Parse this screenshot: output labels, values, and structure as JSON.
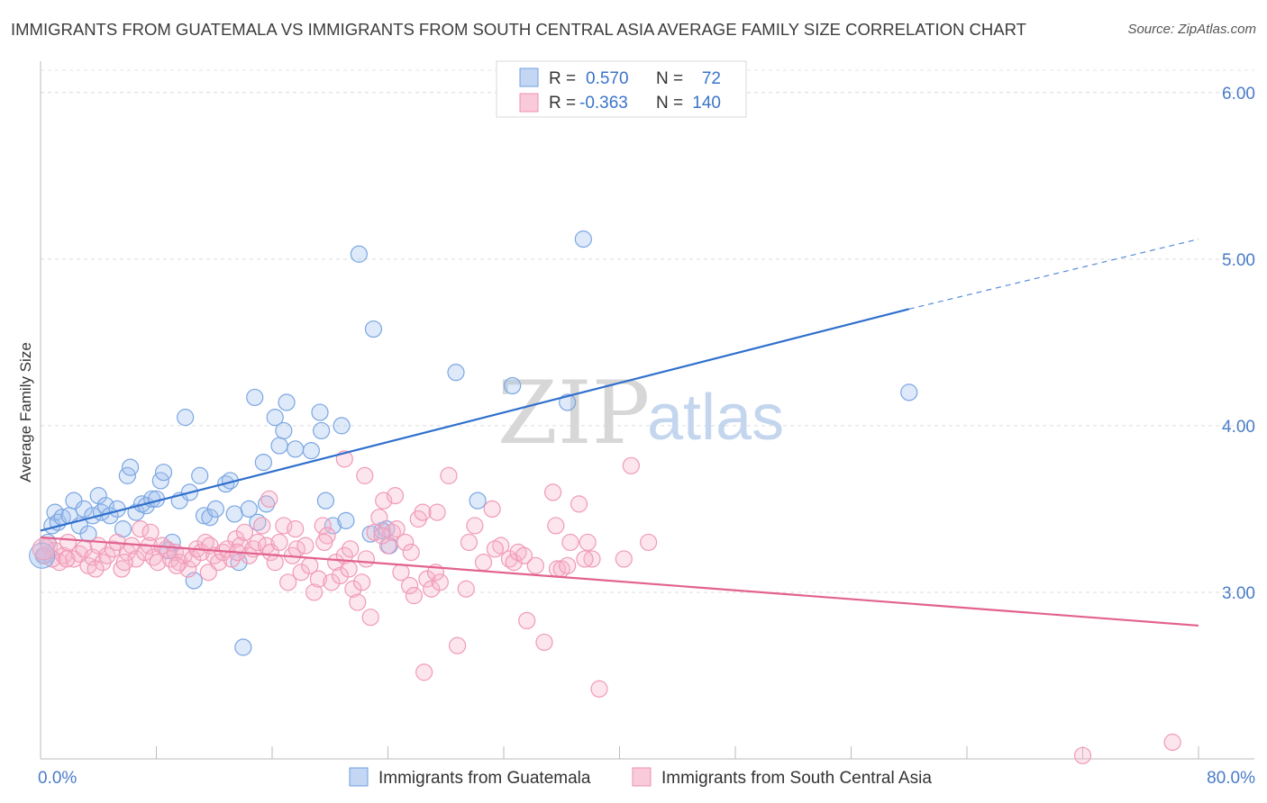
{
  "title": "IMMIGRANTS FROM GUATEMALA VS IMMIGRANTS FROM SOUTH CENTRAL ASIA AVERAGE FAMILY SIZE CORRELATION CHART",
  "source": "Source: ZipAtlas.com",
  "watermark": {
    "zip": "ZIP",
    "atlas": "atlas"
  },
  "legend": {
    "rows": [
      {
        "r_label": "R =",
        "r_value": "0.570",
        "n_label": "N =",
        "n_value": "72",
        "color": "#6f9fe0"
      },
      {
        "r_label": "R =",
        "r_value": "-0.363",
        "n_label": "N =",
        "n_value": "140",
        "color": "#ee8fae"
      }
    ]
  },
  "chart_data": {
    "type": "scatter",
    "title": "IMMIGRANTS FROM GUATEMALA VS IMMIGRANTS FROM SOUTH CENTRAL ASIA AVERAGE FAMILY SIZE CORRELATION CHART",
    "xlabel": "",
    "ylabel": "Average Family Size",
    "xlim": [
      0,
      80
    ],
    "ylim": [
      2.0,
      6.15
    ],
    "x_tick_labels": [
      "0.0%",
      "80.0%"
    ],
    "y_ticks": [
      3.0,
      4.0,
      5.0,
      6.0
    ],
    "y_tick_labels": [
      "3.00",
      "4.00",
      "5.00",
      "6.00"
    ],
    "grid": "horizontal dashed",
    "legend_position": "top-center",
    "series": [
      {
        "name": "Immigrants from Guatemala",
        "color": "#6f9fe0",
        "line_color": "#2f6fcc",
        "trend": {
          "x0": 0,
          "y0": 3.37,
          "x1": 60,
          "y1": 4.7,
          "dash_to_x": 80,
          "dash_to_y": 5.12
        },
        "points": [
          [
            0.3,
            3.22
          ],
          [
            0.5,
            3.3
          ],
          [
            0.8,
            3.4
          ],
          [
            1,
            3.48
          ],
          [
            1.2,
            3.42
          ],
          [
            1.5,
            3.45
          ],
          [
            2,
            3.46
          ],
          [
            2.3,
            3.55
          ],
          [
            2.7,
            3.4
          ],
          [
            3,
            3.5
          ],
          [
            3.3,
            3.35
          ],
          [
            3.6,
            3.46
          ],
          [
            4,
            3.58
          ],
          [
            4.2,
            3.48
          ],
          [
            4.5,
            3.52
          ],
          [
            4.8,
            3.46
          ],
          [
            5.3,
            3.5
          ],
          [
            5.7,
            3.38
          ],
          [
            6,
            3.7
          ],
          [
            6.2,
            3.75
          ],
          [
            6.6,
            3.48
          ],
          [
            7,
            3.53
          ],
          [
            7.3,
            3.52
          ],
          [
            7.7,
            3.56
          ],
          [
            8,
            3.56
          ],
          [
            8.3,
            3.67
          ],
          [
            8.5,
            3.72
          ],
          [
            8.8,
            3.25
          ],
          [
            9.1,
            3.3
          ],
          [
            9.6,
            3.55
          ],
          [
            10,
            4.05
          ],
          [
            10.3,
            3.6
          ],
          [
            10.6,
            3.07
          ],
          [
            11,
            3.7
          ],
          [
            11.3,
            3.46
          ],
          [
            11.7,
            3.45
          ],
          [
            12.1,
            3.5
          ],
          [
            12.8,
            3.65
          ],
          [
            13.1,
            3.67
          ],
          [
            13.4,
            3.47
          ],
          [
            13.7,
            3.18
          ],
          [
            14,
            2.67
          ],
          [
            14.4,
            3.5
          ],
          [
            14.8,
            4.17
          ],
          [
            15,
            3.42
          ],
          [
            15.4,
            3.78
          ],
          [
            15.6,
            3.53
          ],
          [
            16.2,
            4.05
          ],
          [
            16.5,
            3.88
          ],
          [
            16.8,
            3.97
          ],
          [
            17,
            4.14
          ],
          [
            17.6,
            3.86
          ],
          [
            18.7,
            3.85
          ],
          [
            19.3,
            4.08
          ],
          [
            19.4,
            3.97
          ],
          [
            19.7,
            3.55
          ],
          [
            20.2,
            3.4
          ],
          [
            20.8,
            4.0
          ],
          [
            21.1,
            3.43
          ],
          [
            22,
            5.03
          ],
          [
            22.8,
            3.35
          ],
          [
            23,
            4.58
          ],
          [
            23.6,
            3.37
          ],
          [
            23.9,
            3.38
          ],
          [
            24.1,
            3.28
          ],
          [
            28.7,
            4.32
          ],
          [
            30.2,
            3.55
          ],
          [
            32.6,
            4.24
          ],
          [
            36.4,
            4.14
          ],
          [
            37.5,
            5.12
          ],
          [
            60,
            4.2
          ],
          [
            0.2,
            3.22
          ]
        ]
      },
      {
        "name": "Immigrants from South Central Asia",
        "color": "#ee8fae",
        "line_color": "#e2628f",
        "trend": {
          "x0": 0,
          "y0": 3.33,
          "x1": 80,
          "y1": 2.8
        },
        "points": [
          [
            0.3,
            3.22
          ],
          [
            0.6,
            3.28
          ],
          [
            1,
            3.25
          ],
          [
            1.3,
            3.18
          ],
          [
            1.6,
            3.22
          ],
          [
            1.9,
            3.3
          ],
          [
            2.3,
            3.2
          ],
          [
            2.7,
            3.23
          ],
          [
            3,
            3.26
          ],
          [
            3.3,
            3.16
          ],
          [
            3.6,
            3.21
          ],
          [
            4,
            3.28
          ],
          [
            4.3,
            3.18
          ],
          [
            4.6,
            3.22
          ],
          [
            5,
            3.26
          ],
          [
            5.3,
            3.3
          ],
          [
            5.6,
            3.14
          ],
          [
            6,
            3.24
          ],
          [
            6.3,
            3.28
          ],
          [
            6.6,
            3.2
          ],
          [
            6.9,
            3.38
          ],
          [
            7.2,
            3.24
          ],
          [
            7.5,
            3.28
          ],
          [
            7.8,
            3.21
          ],
          [
            8.1,
            3.18
          ],
          [
            8.4,
            3.28
          ],
          [
            8.7,
            3.26
          ],
          [
            9,
            3.2
          ],
          [
            9.3,
            3.24
          ],
          [
            9.6,
            3.18
          ],
          [
            9.9,
            3.22
          ],
          [
            10.2,
            3.14
          ],
          [
            10.5,
            3.2
          ],
          [
            10.8,
            3.26
          ],
          [
            11.1,
            3.24
          ],
          [
            11.4,
            3.3
          ],
          [
            11.7,
            3.28
          ],
          [
            12,
            3.22
          ],
          [
            12.3,
            3.18
          ],
          [
            12.6,
            3.24
          ],
          [
            12.9,
            3.26
          ],
          [
            13.2,
            3.2
          ],
          [
            13.5,
            3.32
          ],
          [
            13.8,
            3.28
          ],
          [
            14.1,
            3.36
          ],
          [
            14.4,
            3.22
          ],
          [
            14.7,
            3.26
          ],
          [
            15,
            3.3
          ],
          [
            15.3,
            3.4
          ],
          [
            15.6,
            3.28
          ],
          [
            15.9,
            3.24
          ],
          [
            16.2,
            3.18
          ],
          [
            16.5,
            3.3
          ],
          [
            16.8,
            3.4
          ],
          [
            17.1,
            3.06
          ],
          [
            17.4,
            3.22
          ],
          [
            17.7,
            3.26
          ],
          [
            18,
            3.12
          ],
          [
            18.3,
            3.28
          ],
          [
            18.6,
            3.16
          ],
          [
            18.9,
            3.0
          ],
          [
            19.2,
            3.08
          ],
          [
            19.5,
            3.4
          ],
          [
            19.8,
            3.34
          ],
          [
            20.1,
            3.06
          ],
          [
            20.4,
            3.18
          ],
          [
            20.7,
            3.1
          ],
          [
            21,
            3.22
          ],
          [
            21.3,
            3.14
          ],
          [
            21.6,
            3.02
          ],
          [
            21.9,
            2.94
          ],
          [
            22.2,
            3.06
          ],
          [
            22.5,
            3.2
          ],
          [
            22.8,
            2.85
          ],
          [
            23.1,
            3.36
          ],
          [
            23.4,
            3.45
          ],
          [
            23.7,
            3.55
          ],
          [
            24,
            3.28
          ],
          [
            24.3,
            3.36
          ],
          [
            24.6,
            3.38
          ],
          [
            24.9,
            3.12
          ],
          [
            25.2,
            3.3
          ],
          [
            25.5,
            3.04
          ],
          [
            25.8,
            2.98
          ],
          [
            26.1,
            3.44
          ],
          [
            26.4,
            3.48
          ],
          [
            26.7,
            3.08
          ],
          [
            27,
            3.02
          ],
          [
            27.3,
            3.12
          ],
          [
            27.6,
            3.06
          ],
          [
            28.2,
            3.7
          ],
          [
            28.8,
            2.68
          ],
          [
            29.4,
            3.02
          ],
          [
            30,
            3.4
          ],
          [
            30.6,
            3.18
          ],
          [
            31.2,
            3.5
          ],
          [
            31.8,
            3.28
          ],
          [
            32.4,
            3.2
          ],
          [
            32.7,
            3.18
          ],
          [
            33,
            3.24
          ],
          [
            33.6,
            2.83
          ],
          [
            34.2,
            3.16
          ],
          [
            34.8,
            2.7
          ],
          [
            35.4,
            3.6
          ],
          [
            35.7,
            3.14
          ],
          [
            36,
            3.14
          ],
          [
            36.6,
            3.3
          ],
          [
            37.2,
            3.53
          ],
          [
            37.8,
            3.3
          ],
          [
            38.1,
            3.2
          ],
          [
            40.8,
            3.76
          ],
          [
            0.8,
            3.2
          ],
          [
            1.8,
            3.2
          ],
          [
            3.8,
            3.14
          ],
          [
            5.8,
            3.18
          ],
          [
            7.6,
            3.36
          ],
          [
            9.4,
            3.16
          ],
          [
            11.6,
            3.12
          ],
          [
            13.6,
            3.24
          ],
          [
            15.8,
            3.56
          ],
          [
            17.6,
            3.38
          ],
          [
            19.6,
            3.3
          ],
          [
            21.4,
            3.26
          ],
          [
            23.6,
            3.34
          ],
          [
            25.6,
            3.24
          ],
          [
            27.4,
            3.48
          ],
          [
            29.6,
            3.3
          ],
          [
            31.4,
            3.26
          ],
          [
            33.4,
            3.22
          ],
          [
            35.6,
            3.4
          ],
          [
            37.6,
            3.2
          ],
          [
            26.5,
            2.52
          ],
          [
            38.6,
            2.42
          ],
          [
            40.3,
            3.2
          ],
          [
            42,
            3.3
          ],
          [
            72,
            2.02
          ],
          [
            78.2,
            2.1
          ],
          [
            21,
            3.8
          ],
          [
            22.4,
            3.7
          ],
          [
            24.5,
            3.58
          ],
          [
            36.4,
            3.16
          ]
        ]
      }
    ]
  },
  "bottom_legend": [
    {
      "label": "Immigrants from Guatemala",
      "color": "#6f9fe0"
    },
    {
      "label": "Immigrants from South Central Asia",
      "color": "#ee8fae"
    }
  ]
}
